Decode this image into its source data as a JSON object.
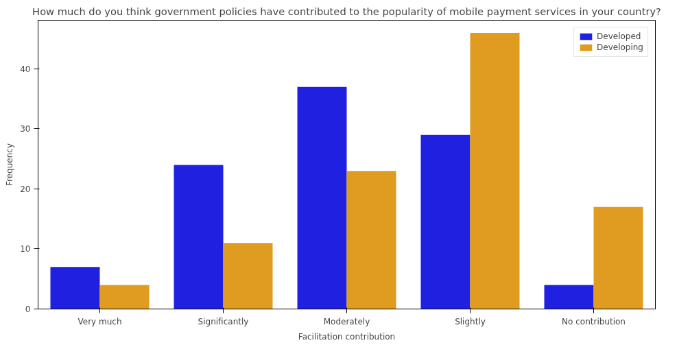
{
  "chart_data": {
    "type": "bar",
    "title": "How much do you think government policies have contributed to the popularity of mobile payment services in your country?",
    "xlabel": "Facilitation contribution",
    "ylabel": "Frequency",
    "categories": [
      "Very much",
      "Significantly",
      "Moderately",
      "Slightly",
      "No contribution"
    ],
    "series": [
      {
        "name": "Developed",
        "color": "#2020e0",
        "values": [
          7,
          24,
          37,
          29,
          4
        ]
      },
      {
        "name": "Developing",
        "color": "#e09c20",
        "values": [
          4,
          11,
          23,
          46,
          17
        ]
      }
    ],
    "ylim": [
      0,
      48.1
    ],
    "yticks": [
      0,
      10,
      20,
      30,
      40
    ],
    "grid": false,
    "legend": "top right"
  }
}
